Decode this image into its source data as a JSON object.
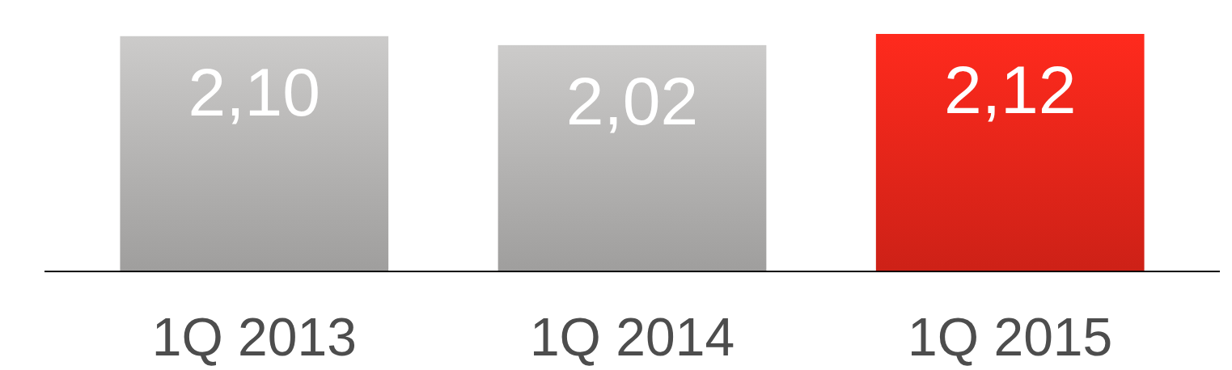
{
  "chart_data": {
    "type": "bar",
    "categories": [
      "1Q 2013",
      "1Q 2014",
      "1Q 2015"
    ],
    "values": [
      2.1,
      2.02,
      2.12
    ],
    "value_labels": [
      "2,10",
      "2,02",
      "2,12"
    ],
    "colors": [
      "#b4b3b2",
      "#b4b3b2",
      "#e8251a"
    ]
  }
}
